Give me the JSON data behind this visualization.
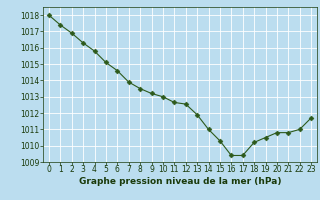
{
  "x": [
    0,
    1,
    2,
    3,
    4,
    5,
    6,
    7,
    8,
    9,
    10,
    11,
    12,
    13,
    14,
    15,
    16,
    17,
    18,
    19,
    20,
    21,
    22,
    23
  ],
  "y": [
    1018.0,
    1017.4,
    1016.9,
    1016.3,
    1015.8,
    1015.1,
    1014.6,
    1013.9,
    1013.5,
    1013.2,
    1013.0,
    1012.65,
    1012.55,
    1011.9,
    1011.0,
    1010.3,
    1009.4,
    1009.4,
    1010.2,
    1010.5,
    1010.8,
    1010.8,
    1011.0,
    1011.7
  ],
  "ylim": [
    1009,
    1018.5
  ],
  "xlim": [
    -0.5,
    23.5
  ],
  "yticks": [
    1009,
    1010,
    1011,
    1012,
    1013,
    1014,
    1015,
    1016,
    1017,
    1018
  ],
  "xticks": [
    0,
    1,
    2,
    3,
    4,
    5,
    6,
    7,
    8,
    9,
    10,
    11,
    12,
    13,
    14,
    15,
    16,
    17,
    18,
    19,
    20,
    21,
    22,
    23
  ],
  "line_color": "#2d5a1b",
  "marker_color": "#2d5a1b",
  "bg_color": "#bbddef",
  "grid_color": "#ffffff",
  "xlabel": "Graphe pression niveau de la mer (hPa)",
  "xlabel_color": "#1a3a0a",
  "tick_color": "#1a3a0a",
  "axis_label_fontsize": 6.5,
  "tick_fontsize": 5.5,
  "marker_size": 2.5,
  "line_width": 0.8
}
